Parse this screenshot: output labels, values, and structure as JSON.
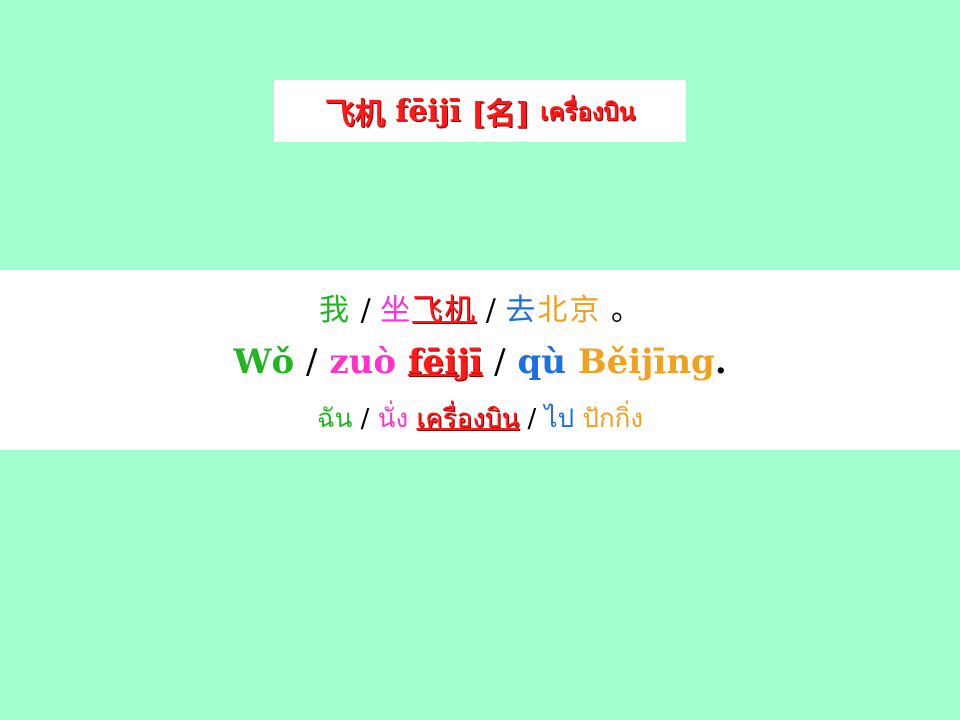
{
  "title": {
    "chinese": "飞机",
    "pinyin": "fēijī",
    "pos": "[名]",
    "thai": "เครื่องบิน"
  },
  "sentence": {
    "chinese": {
      "w1": "我",
      "s1": "/",
      "w2": "坐",
      "w3": "飞机",
      "s2": "/",
      "w4": "去",
      "w5": "北京",
      "end": "。"
    },
    "pinyin": {
      "w1": "Wǒ",
      "s1": "/",
      "w2": "zuò",
      "w3": "fēijī",
      "s2": "/",
      "w4": "qù",
      "w5": "Běijīng",
      "end": "."
    },
    "thai": {
      "w1": "ฉัน",
      "s1": "/",
      "w2": "นั่ง",
      "w3": "เครื่องบิน",
      "s2": "/",
      "w4": "ไป",
      "w5": "ปักกิ่ง"
    }
  },
  "colors": {
    "background": "#a0ffcc",
    "subject": "#22b422",
    "verb": "#ff33cc",
    "keyword": "#ff1a1a",
    "direction": "#1e6fe0",
    "place": "#f2a020"
  }
}
